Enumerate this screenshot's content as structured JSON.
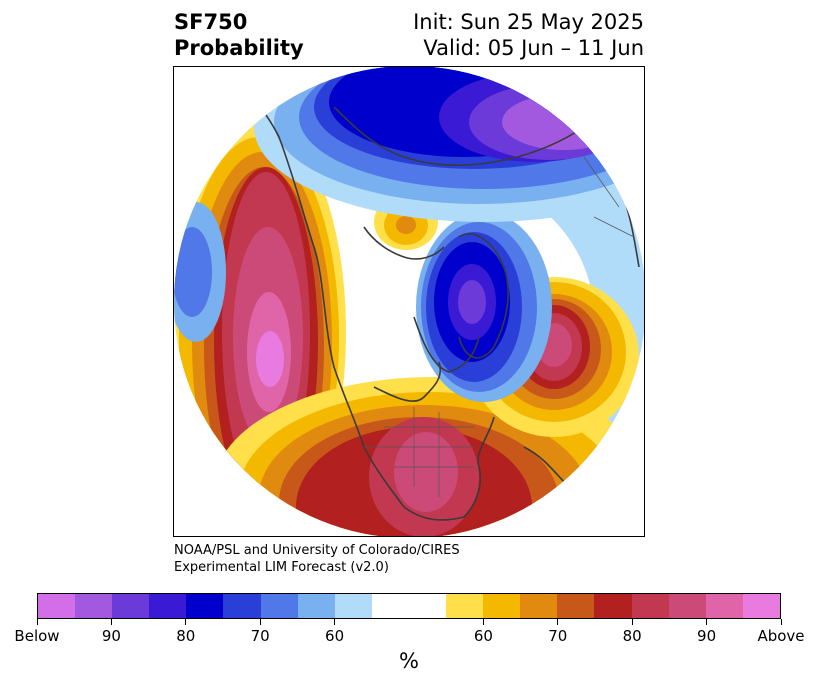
{
  "header": {
    "variable": "SF750",
    "product": "Probability",
    "init": "Init: Sun 25 May 2025",
    "valid": "Valid: 05 Jun – 11 Jun"
  },
  "credit": {
    "line1": "NOAA/PSL and University of Colorado/CIRES",
    "line2": "Experimental LIM Forecast (v2.0)"
  },
  "colorbar": {
    "colors": [
      "#d46ee8",
      "#a259e0",
      "#6c3ad8",
      "#3a1ad4",
      "#0000cc",
      "#2a3fd8",
      "#5078e8",
      "#78b0f0",
      "#b0dcfa",
      "#ffffff",
      "#ffffff",
      "#ffe04a",
      "#f4b800",
      "#e08a10",
      "#c8581a",
      "#b22020",
      "#c23850",
      "#cc4a78",
      "#e064a8",
      "#e87ae0"
    ],
    "tick_labels": [
      "Below",
      "90",
      "80",
      "70",
      "60",
      "60",
      "70",
      "80",
      "90",
      "Above"
    ],
    "unit": "%"
  },
  "map": {
    "projection": "north-polar-stereographic",
    "high_probability_above": [
      "western North America / eastern Pacific",
      "southern United States",
      "North Atlantic",
      "Siberia (small)"
    ],
    "high_probability_below": [
      "Greenland / Baffin Bay",
      "Arctic Ocean / northern Russia",
      "central Pacific (small)"
    ]
  }
}
